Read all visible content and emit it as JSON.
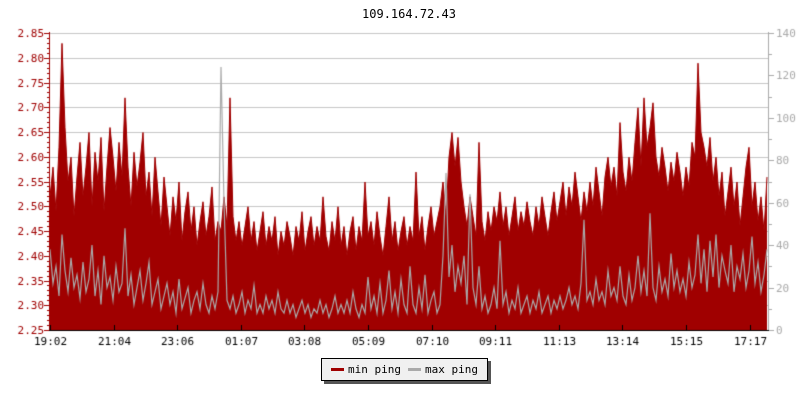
{
  "chart_data": {
    "type": "line",
    "title": "109.164.72.43",
    "title_color": "#000000",
    "grid_color": "#c6c6c6",
    "background": "#ffffff",
    "x_axis": {
      "color": "#000000",
      "tick_labels": [
        "19:02",
        "21:04",
        "23:06",
        "01:07",
        "03:08",
        "05:09",
        "07:10",
        "09:11",
        "11:13",
        "13:14",
        "15:15",
        "17:17"
      ]
    },
    "left_axis": {
      "min": 2.25,
      "max": 2.85,
      "tick_step": 0.05,
      "minor_step": 0.01,
      "color": "#a00000",
      "tick_labels": [
        "2.85",
        "2.80",
        "2.75",
        "2.70",
        "2.65",
        "2.60",
        "2.55",
        "2.50",
        "2.45",
        "2.40",
        "2.35",
        "2.30",
        "2.25"
      ]
    },
    "right_axis": {
      "min": 0,
      "max": 140,
      "tick_step": 20,
      "minor_step": 10,
      "color": "#aaaaaa",
      "tick_labels": [
        "140",
        "120",
        "100",
        "80",
        "60",
        "40",
        "20",
        "0"
      ]
    },
    "legend": {
      "items": [
        {
          "label": "min ping",
          "color": "#a00000"
        },
        {
          "label": "max ping",
          "color": "#aaaaaa"
        }
      ]
    },
    "series": [
      {
        "name": "min ping",
        "axis": "left",
        "style": "area",
        "color": "#a00000",
        "values": [
          2.52,
          2.58,
          2.49,
          2.62,
          2.83,
          2.66,
          2.55,
          2.6,
          2.48,
          2.56,
          2.63,
          2.52,
          2.58,
          2.65,
          2.5,
          2.61,
          2.55,
          2.64,
          2.49,
          2.58,
          2.66,
          2.6,
          2.53,
          2.63,
          2.56,
          2.72,
          2.58,
          2.5,
          2.61,
          2.54,
          2.59,
          2.65,
          2.52,
          2.57,
          2.48,
          2.6,
          2.53,
          2.46,
          2.56,
          2.5,
          2.44,
          2.52,
          2.47,
          2.55,
          2.43,
          2.49,
          2.53,
          2.45,
          2.5,
          2.42,
          2.47,
          2.51,
          2.44,
          2.48,
          2.54,
          2.43,
          2.47,
          2.45,
          2.52,
          2.46,
          2.72,
          2.48,
          2.43,
          2.47,
          2.42,
          2.46,
          2.5,
          2.43,
          2.47,
          2.41,
          2.45,
          2.49,
          2.42,
          2.46,
          2.43,
          2.48,
          2.4,
          2.45,
          2.42,
          2.47,
          2.44,
          2.4,
          2.46,
          2.43,
          2.49,
          2.41,
          2.45,
          2.48,
          2.42,
          2.46,
          2.43,
          2.52,
          2.44,
          2.41,
          2.47,
          2.43,
          2.5,
          2.42,
          2.46,
          2.4,
          2.45,
          2.48,
          2.41,
          2.46,
          2.43,
          2.55,
          2.44,
          2.47,
          2.42,
          2.49,
          2.44,
          2.4,
          2.46,
          2.52,
          2.43,
          2.47,
          2.41,
          2.45,
          2.48,
          2.42,
          2.46,
          2.43,
          2.57,
          2.44,
          2.48,
          2.41,
          2.46,
          2.5,
          2.44,
          2.47,
          2.5,
          2.55,
          2.48,
          2.6,
          2.65,
          2.58,
          2.64,
          2.55,
          2.5,
          2.46,
          2.52,
          2.48,
          2.44,
          2.63,
          2.47,
          2.43,
          2.49,
          2.45,
          2.5,
          2.47,
          2.53,
          2.46,
          2.5,
          2.44,
          2.48,
          2.52,
          2.45,
          2.49,
          2.46,
          2.51,
          2.47,
          2.44,
          2.5,
          2.46,
          2.52,
          2.48,
          2.44,
          2.49,
          2.53,
          2.47,
          2.51,
          2.55,
          2.48,
          2.54,
          2.5,
          2.57,
          2.52,
          2.47,
          2.53,
          2.49,
          2.55,
          2.5,
          2.58,
          2.53,
          2.48,
          2.56,
          2.6,
          2.54,
          2.58,
          2.52,
          2.67,
          2.57,
          2.53,
          2.6,
          2.55,
          2.63,
          2.7,
          2.58,
          2.72,
          2.62,
          2.66,
          2.71,
          2.6,
          2.56,
          2.62,
          2.58,
          2.53,
          2.59,
          2.55,
          2.61,
          2.57,
          2.52,
          2.58,
          2.54,
          2.63,
          2.6,
          2.79,
          2.65,
          2.62,
          2.58,
          2.64,
          2.55,
          2.6,
          2.52,
          2.57,
          2.48,
          2.53,
          2.58,
          2.5,
          2.55,
          2.46,
          2.52,
          2.58,
          2.62,
          2.5,
          2.55,
          2.47,
          2.52,
          2.45,
          2.56
        ]
      },
      {
        "name": "max ping",
        "axis": "right",
        "style": "line",
        "color": "#aaaaaa",
        "values": [
          38,
          22,
          30,
          16,
          45,
          28,
          18,
          34,
          20,
          26,
          15,
          32,
          18,
          24,
          40,
          16,
          28,
          12,
          35,
          20,
          25,
          14,
          30,
          18,
          22,
          48,
          16,
          26,
          12,
          20,
          28,
          14,
          22,
          32,
          12,
          18,
          24,
          10,
          16,
          22,
          12,
          18,
          8,
          24,
          10,
          15,
          20,
          8,
          14,
          18,
          10,
          22,
          12,
          8,
          16,
          10,
          18,
          124,
          60,
          14,
          10,
          16,
          8,
          12,
          18,
          8,
          14,
          10,
          21,
          8,
          12,
          8,
          16,
          10,
          14,
          8,
          18,
          10,
          8,
          14,
          8,
          12,
          6,
          10,
          14,
          8,
          12,
          6,
          10,
          8,
          14,
          8,
          12,
          6,
          10,
          16,
          8,
          12,
          8,
          14,
          8,
          18,
          10,
          6,
          12,
          8,
          25,
          10,
          16,
          8,
          22,
          8,
          14,
          28,
          10,
          18,
          8,
          24,
          12,
          8,
          30,
          12,
          8,
          20,
          10,
          26,
          8,
          14,
          18,
          8,
          12,
          35,
          74,
          25,
          40,
          18,
          30,
          22,
          35,
          12,
          64,
          20,
          12,
          30,
          10,
          16,
          8,
          12,
          20,
          10,
          42,
          12,
          18,
          8,
          14,
          10,
          20,
          8,
          12,
          16,
          8,
          14,
          10,
          18,
          8,
          12,
          16,
          8,
          14,
          10,
          16,
          10,
          14,
          20,
          12,
          16,
          10,
          22,
          52,
          14,
          18,
          12,
          24,
          14,
          18,
          12,
          28,
          16,
          20,
          14,
          30,
          16,
          12,
          26,
          14,
          20,
          35,
          18,
          28,
          16,
          55,
          20,
          14,
          30,
          18,
          24,
          16,
          36,
          20,
          28,
          18,
          24,
          16,
          32,
          20,
          26,
          45,
          22,
          38,
          18,
          42,
          25,
          45,
          20,
          35,
          28,
          22,
          40,
          18,
          30,
          24,
          36,
          20,
          28,
          44,
          22,
          32,
          18,
          26,
          38
        ]
      }
    ]
  }
}
